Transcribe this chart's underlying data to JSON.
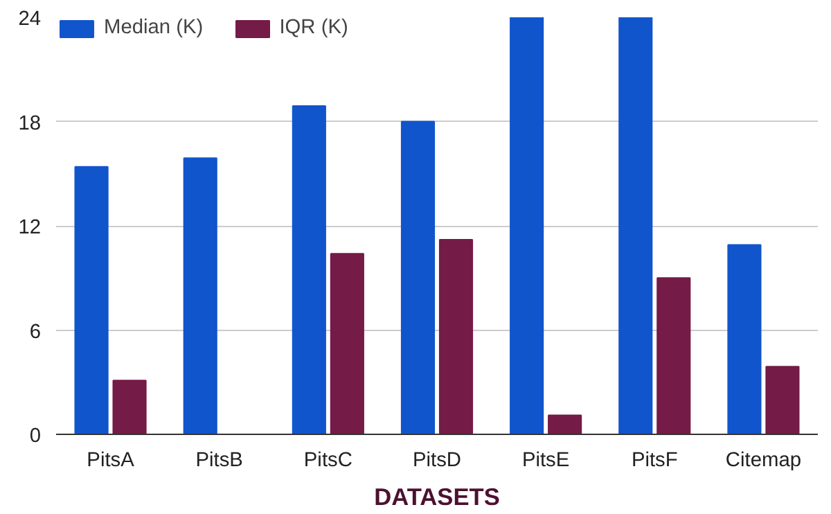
{
  "chart_data": {
    "type": "bar",
    "xlabel": "DATASETS",
    "categories": [
      "PitsA",
      "PitsB",
      "PitsC",
      "PitsD",
      "PitsE",
      "PitsF",
      "Citemap"
    ],
    "series": [
      {
        "name": "Median (K)",
        "color": "#1155cc",
        "values": [
          15.4,
          15.9,
          18.9,
          18.0,
          24,
          24,
          10.9
        ]
      },
      {
        "name": "IQR (K)",
        "color": "#741b47",
        "values": [
          3.1,
          0,
          10.4,
          11.2,
          1.1,
          9.0,
          3.9
        ]
      }
    ],
    "ylim": [
      0,
      24
    ],
    "yticks": [
      0,
      6,
      12,
      18,
      24
    ],
    "grid": "y",
    "legend": "top left"
  }
}
